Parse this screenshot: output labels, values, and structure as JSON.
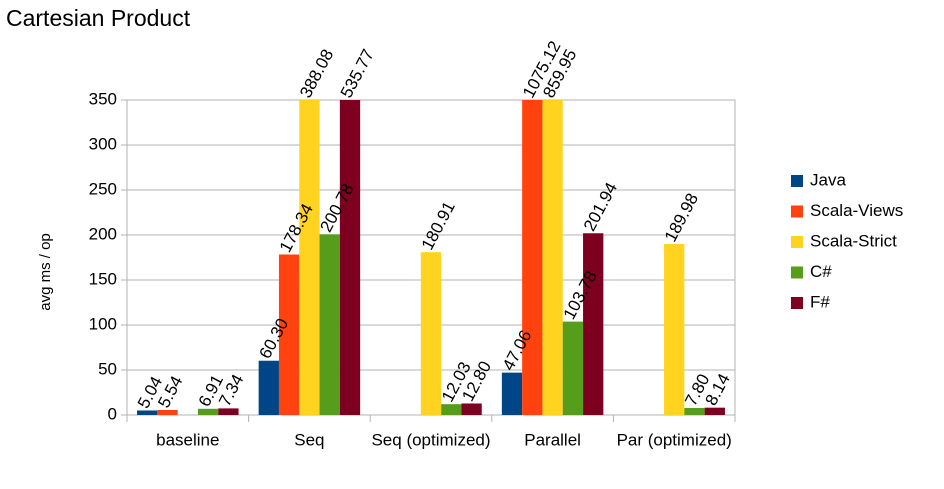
{
  "chart_data": {
    "type": "bar",
    "title": "Cartesian Product",
    "y_label": "avg ms / op",
    "categories": [
      "baseline",
      "Seq",
      "Seq (optimized)",
      "Parallel",
      "Par (optimized)"
    ],
    "series": [
      {
        "name": "Java",
        "color": "#004586",
        "values": [
          5.04,
          60.3,
          null,
          47.06,
          null
        ],
        "value_labels": [
          "5.04",
          "60.30",
          null,
          "47.06",
          null
        ]
      },
      {
        "name": "Scala-Views",
        "color": "#ff420e",
        "values": [
          5.54,
          178.34,
          null,
          1075.12,
          null
        ],
        "value_labels": [
          "5.54",
          "178.34",
          null,
          "1075.12",
          null
        ]
      },
      {
        "name": "Scala-Strict",
        "color": "#ffd320",
        "values": [
          null,
          388.08,
          180.91,
          859.95,
          189.98
        ],
        "value_labels": [
          null,
          "388.08",
          "180.91",
          "859.95",
          "189.98"
        ]
      },
      {
        "name": "C#",
        "color": "#579d1c",
        "values": [
          6.91,
          200.78,
          12.03,
          103.78,
          7.8
        ],
        "value_labels": [
          "6.91",
          "200.78",
          "12.03",
          "103.78",
          "7.80"
        ]
      },
      {
        "name": "F#",
        "color": "#7e0021",
        "values": [
          7.34,
          535.77,
          12.8,
          201.94,
          8.14
        ],
        "value_labels": [
          "7.34",
          "535.77",
          "12.80",
          "201.94",
          "8.14"
        ]
      }
    ],
    "ylim": [
      0,
      350
    ],
    "yticks": [
      0,
      50,
      100,
      150,
      200,
      250,
      300,
      350
    ],
    "grid": true,
    "legend": "right"
  }
}
